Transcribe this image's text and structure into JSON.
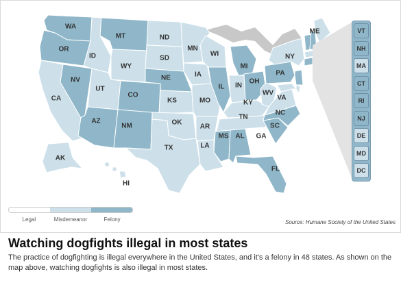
{
  "colors": {
    "legal": "#ffffff",
    "misdemeanor": "#cde0ea",
    "felony": "#8fb7c9",
    "canada": "#c8c8c8",
    "border": "#ffffff"
  },
  "states": {
    "WA": "felony",
    "OR": "felony",
    "CA": "misdemeanor",
    "ID": "misdemeanor",
    "NV": "felony",
    "MT": "felony",
    "WY": "misdemeanor",
    "UT": "misdemeanor",
    "AZ": "felony",
    "CO": "felony",
    "NM": "felony",
    "ND": "misdemeanor",
    "SD": "misdemeanor",
    "NE": "felony",
    "KS": "misdemeanor",
    "OK": "misdemeanor",
    "TX": "misdemeanor",
    "MN": "misdemeanor",
    "IA": "misdemeanor",
    "MO": "misdemeanor",
    "AR": "misdemeanor",
    "LA": "misdemeanor",
    "WI": "misdemeanor",
    "IL": "felony",
    "MI": "felony",
    "IN": "misdemeanor",
    "OH": "felony",
    "KY": "misdemeanor",
    "TN": "misdemeanor",
    "MS": "felony",
    "AL": "felony",
    "GA": "legal",
    "FL": "felony",
    "SC": "felony",
    "NC": "felony",
    "VA": "misdemeanor",
    "WV": "misdemeanor",
    "PA": "felony",
    "NY": "misdemeanor",
    "ME": "misdemeanor",
    "AK": "misdemeanor",
    "HI": "misdemeanor",
    "VT": "felony",
    "NH": "felony",
    "MA": "misdemeanor",
    "CT": "felony",
    "RI": "felony",
    "NJ": "felony",
    "DE": "misdemeanor",
    "MD": "misdemeanor",
    "DC": "misdemeanor"
  },
  "inset_states": [
    "VT",
    "NH",
    "MA",
    "CT",
    "RI",
    "NJ",
    "DE",
    "MD",
    "DC"
  ],
  "legend": {
    "items": [
      "Legal",
      "Misdemeanor",
      "Felony"
    ]
  },
  "source": "Source: Humane Society of the United States",
  "headline": "Watching dogfights illegal in most states",
  "description": "The practice of dogfighting is illegal everywhere in the United States, and it's a felony in 48 states. As shown on the map above, watching dogfights is also illegal in most states."
}
